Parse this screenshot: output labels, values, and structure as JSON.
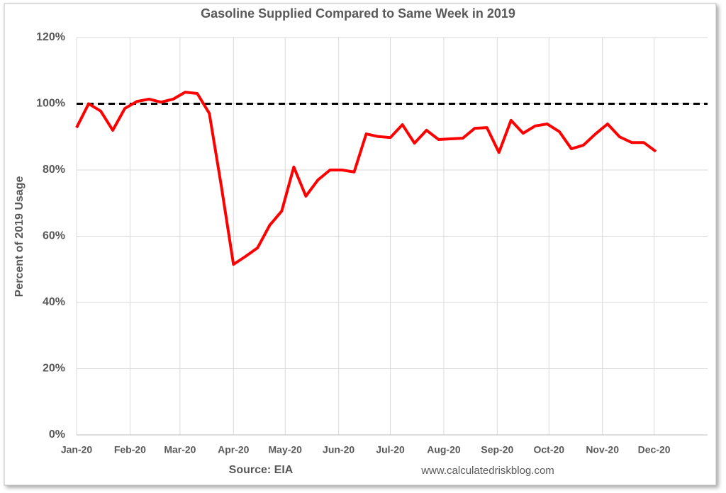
{
  "chart_data": {
    "type": "line",
    "title": "Gasoline Supplied Compared to Same Week in 2019",
    "ylabel": "Percent of 2019 Usage",
    "source": "Source: EIA",
    "credit": "www.calculatedriskblog.com",
    "x": [
      0,
      7,
      14,
      21,
      28,
      35,
      42,
      49,
      56,
      63,
      70,
      77,
      84,
      91,
      98,
      105,
      112,
      119,
      126,
      133,
      140,
      147,
      154,
      161,
      168,
      175,
      182,
      189,
      196,
      203,
      210,
      217,
      224,
      231,
      238,
      245,
      252,
      259,
      266,
      273,
      280,
      287,
      294,
      301,
      308,
      315,
      322,
      329,
      336
    ],
    "series": [
      {
        "name": "Percent of 2019 Usage",
        "color": "#ff0000",
        "values": [
          92.8,
          100,
          97.8,
          92,
          98.6,
          100.7,
          101.4,
          100.5,
          101.4,
          103.5,
          103.1,
          97.1,
          75,
          51.5,
          53.9,
          56.5,
          63.3,
          67.6,
          80.9,
          72.1,
          77,
          80,
          80,
          79.4,
          90.9,
          90.1,
          89.8,
          93.7,
          88.1,
          92,
          89.2,
          89.4,
          89.6,
          92.6,
          92.8,
          85.3,
          95,
          91.1,
          93.3,
          93.9,
          91.6,
          86.4,
          87.5,
          90.9,
          93.9,
          90,
          88.3,
          88.3,
          85.6
        ]
      }
    ],
    "reference_line": 100,
    "xlim": [
      0,
      366
    ],
    "xticks": [
      {
        "value": 0,
        "label": "Jan-20"
      },
      {
        "value": 31,
        "label": "Feb-20"
      },
      {
        "value": 60,
        "label": "Mar-20"
      },
      {
        "value": 91,
        "label": "Apr-20"
      },
      {
        "value": 121,
        "label": "May-20"
      },
      {
        "value": 152,
        "label": "Jun-20"
      },
      {
        "value": 182,
        "label": "Jul-20"
      },
      {
        "value": 213,
        "label": "Aug-20"
      },
      {
        "value": 244,
        "label": "Sep-20"
      },
      {
        "value": 274,
        "label": "Oct-20"
      },
      {
        "value": 305,
        "label": "Nov-20"
      },
      {
        "value": 335,
        "label": "Dec-20"
      }
    ],
    "ylim": [
      0,
      120
    ],
    "yticks": [
      {
        "value": 0,
        "label": "0%"
      },
      {
        "value": 20,
        "label": "20%"
      },
      {
        "value": 40,
        "label": "40%"
      },
      {
        "value": 60,
        "label": "60%"
      },
      {
        "value": 80,
        "label": "80%"
      },
      {
        "value": 100,
        "label": "100%"
      },
      {
        "value": 120,
        "label": "120%"
      }
    ],
    "grid": true
  }
}
